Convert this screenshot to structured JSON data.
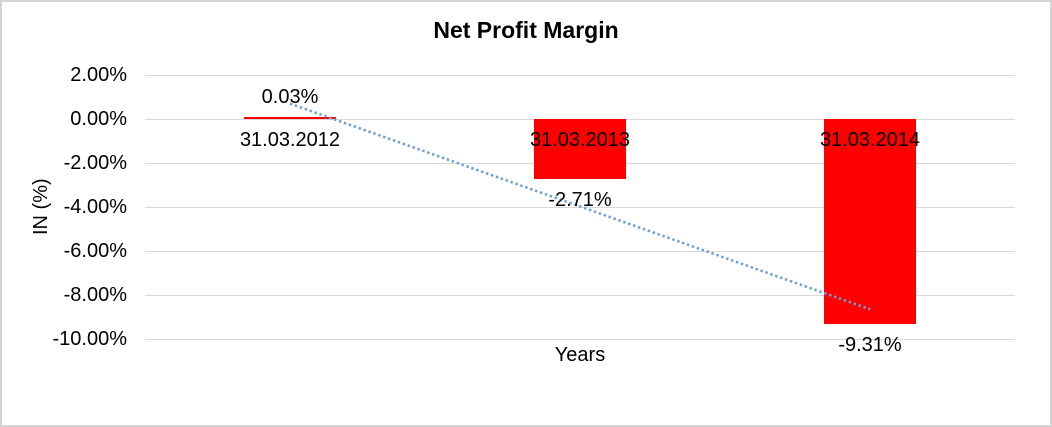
{
  "styles": {
    "bar_color": "#FF0000",
    "trendline_color": "#6E9FD8",
    "gridline_color": "#D9D9D9",
    "text_color": "#000000",
    "border_color": "#D4D4D4",
    "background": "#FFFFFF"
  },
  "chart_data": {
    "type": "bar",
    "title": "Net Profit Margin",
    "xlabel": "Years",
    "ylabel": "IN (%)",
    "categories": [
      "31.03.2012",
      "31.03.2013",
      "31.03.2014"
    ],
    "values": [
      0.03,
      -2.71,
      -9.31
    ],
    "data_labels": [
      "0.03%",
      "-2.71%",
      "-9.31%"
    ],
    "y_ticks": [
      "2.00%",
      "0.00%",
      "-2.00%",
      "-4.00%",
      "-6.00%",
      "-8.00%",
      "-10.00%"
    ],
    "y_tick_values": [
      2,
      0,
      -2,
      -4,
      -6,
      -8,
      -10
    ],
    "ylim": [
      -10,
      2
    ],
    "grid": "horizontal",
    "legend": "none",
    "trendline": {
      "type": "linear",
      "style": "dotted",
      "color": "#6E9FD8",
      "start_value": 0.7,
      "end_value": -8.65
    }
  }
}
